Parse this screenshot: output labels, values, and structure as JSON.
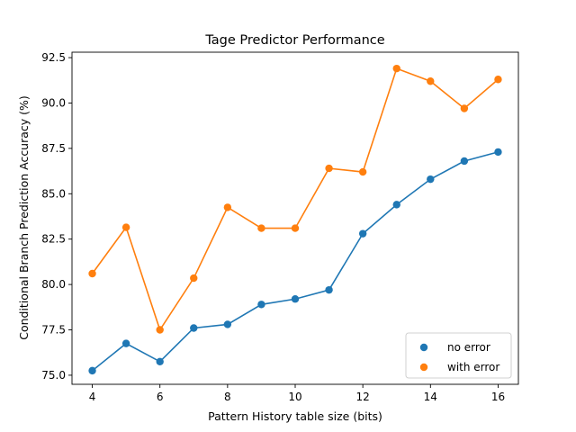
{
  "chart_data": {
    "type": "line",
    "title": "Tage Predictor Performance",
    "xlabel": "Pattern History table size (bits)",
    "ylabel": "Conditional Branch Prediction Accuracy (%)",
    "x": [
      4,
      5,
      6,
      7,
      8,
      9,
      10,
      11,
      12,
      13,
      14,
      15,
      16
    ],
    "xlim": [
      3.4,
      16.6
    ],
    "ylim": [
      74.5,
      92.8
    ],
    "xticks": [
      4,
      6,
      8,
      10,
      12,
      14,
      16
    ],
    "xtick_labels": [
      "4",
      "6",
      "8",
      "10",
      "12",
      "14",
      "16"
    ],
    "yticks": [
      75.0,
      77.5,
      80.0,
      82.5,
      85.0,
      87.5,
      90.0,
      92.5
    ],
    "ytick_labels": [
      "75.0",
      "77.5",
      "80.0",
      "82.5",
      "85.0",
      "87.5",
      "90.0",
      "92.5"
    ],
    "grid": false,
    "legend_position": "lower-right",
    "series": [
      {
        "name": "no error",
        "color": "#1f77b4",
        "values": [
          75.25,
          76.75,
          75.75,
          77.6,
          77.8,
          78.9,
          79.2,
          79.7,
          82.8,
          84.4,
          85.8,
          86.8,
          87.3
        ]
      },
      {
        "name": "with error",
        "color": "#ff7f0e",
        "values": [
          80.6,
          83.15,
          77.5,
          80.35,
          84.25,
          83.1,
          83.1,
          86.4,
          86.2,
          91.9,
          91.2,
          89.7,
          91.3
        ]
      }
    ]
  }
}
